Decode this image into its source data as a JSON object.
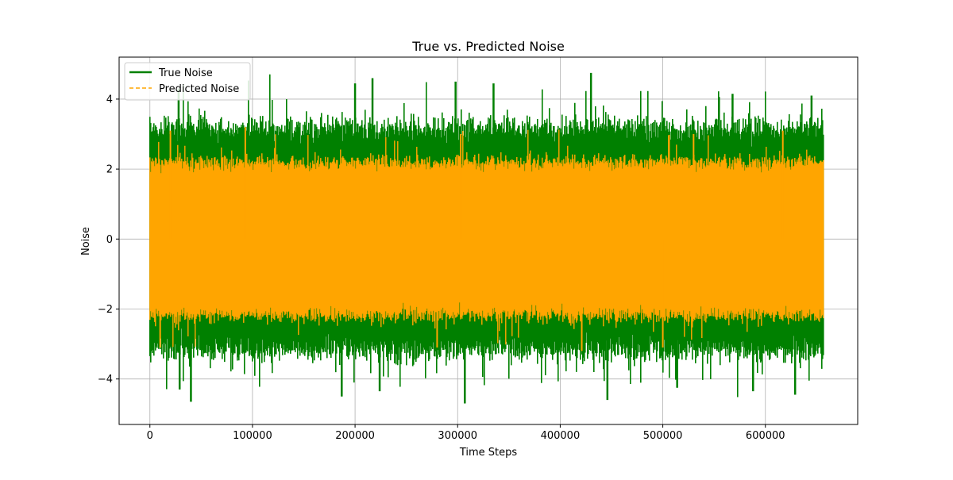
{
  "chart_data": {
    "type": "line",
    "title": "True vs. Predicted Noise",
    "xlabel": "Time Steps",
    "ylabel": "Noise",
    "xlim": [
      -30000,
      690000
    ],
    "ylim": [
      -5.3,
      5.2
    ],
    "xticks": [
      0,
      100000,
      200000,
      300000,
      400000,
      500000,
      600000
    ],
    "yticks": [
      -4,
      -2,
      0,
      2,
      4
    ],
    "xtick_labels": [
      "0",
      "100000",
      "200000",
      "300000",
      "400000",
      "500000",
      "600000"
    ],
    "ytick_labels": [
      "−4",
      "−2",
      "0",
      "2",
      "4"
    ],
    "grid": true,
    "legend_position": "upper-left",
    "n_points": 657000,
    "series": [
      {
        "name": "True Noise",
        "color": "#008000",
        "style": "solid",
        "typical_envelope": [
          -3.2,
          3.2
        ],
        "extreme_range": [
          -4.7,
          4.75
        ],
        "peak_points": [
          [
            28000,
            4.3
          ],
          [
            200000,
            4.45
          ],
          [
            217000,
            4.6
          ],
          [
            298000,
            4.5
          ],
          [
            335000,
            4.45
          ],
          [
            430000,
            4.75
          ],
          [
            568000,
            4.15
          ],
          [
            645000,
            4.1
          ]
        ],
        "trough_points": [
          [
            29000,
            -4.3
          ],
          [
            40000,
            -4.65
          ],
          [
            187000,
            -4.5
          ],
          [
            224000,
            -4.35
          ],
          [
            307000,
            -4.7
          ],
          [
            446000,
            -4.6
          ],
          [
            514000,
            -4.25
          ],
          [
            588000,
            -4.35
          ],
          [
            629000,
            -4.45
          ]
        ]
      },
      {
        "name": "Predicted Noise",
        "color": "#FFA500",
        "style": "dashed",
        "typical_envelope": [
          -2.2,
          2.2
        ],
        "extreme_range": [
          -3.3,
          3.3
        ],
        "peak_points": [
          [
            20000,
            3.1
          ],
          [
            93000,
            3.2
          ],
          [
            303000,
            3.0
          ],
          [
            530000,
            3.0
          ],
          [
            617000,
            3.1
          ]
        ],
        "trough_points": [
          [
            10000,
            -3.1
          ],
          [
            280000,
            -3.1
          ],
          [
            421000,
            -3.2
          ],
          [
            500000,
            -3.1
          ]
        ]
      }
    ]
  }
}
